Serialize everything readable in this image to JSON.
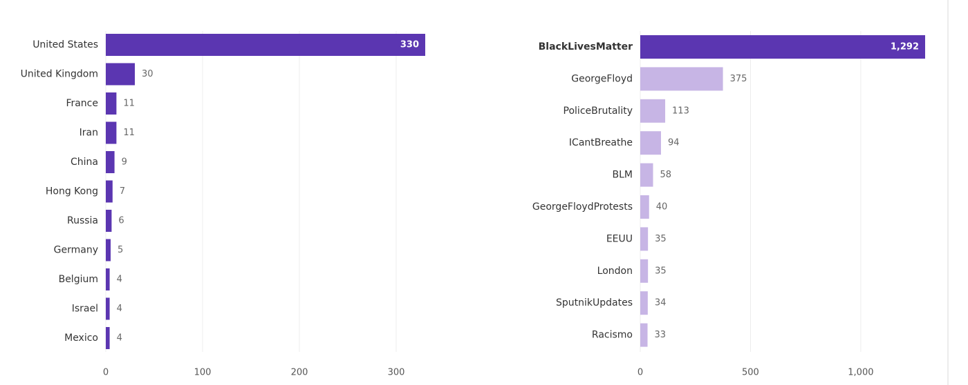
{
  "chart_data": [
    {
      "type": "barh",
      "categories": [
        "United States",
        "United Kingdom",
        "France",
        "Iran",
        "China",
        "Hong Kong",
        "Russia",
        "Germany",
        "Belgium",
        "Israel",
        "Mexico"
      ],
      "values": [
        330,
        30,
        11,
        11,
        9,
        7,
        6,
        5,
        4,
        4,
        4
      ],
      "color": "#5b36b1",
      "xlim": [
        0,
        330
      ],
      "xticks": [
        0,
        100,
        200,
        300
      ],
      "grid": true
    },
    {
      "type": "barh",
      "categories": [
        "BlackLivesMatter",
        "GeorgeFloyd",
        "PoliceBrutality",
        "ICantBreathe",
        "BLM",
        "GeorgeFloydProtests",
        "EEUU",
        "London",
        "SputnikUpdates",
        "Racismo"
      ],
      "values": [
        1292,
        375,
        113,
        94,
        58,
        40,
        35,
        35,
        34,
        33
      ],
      "value_labels": [
        "1,292",
        "375",
        "113",
        "94",
        "58",
        "40",
        "35",
        "35",
        "34",
        "33"
      ],
      "colors": [
        "#5b36b1",
        "#c7b5e5",
        "#c7b5e5",
        "#c7b5e5",
        "#c7b5e5",
        "#c7b5e5",
        "#c7b5e5",
        "#c7b5e5",
        "#c7b5e5",
        "#c7b5e5"
      ],
      "xlim": [
        0,
        1292
      ],
      "xticks": [
        0,
        500,
        {
          "value": 1000,
          "label": "1,000"
        }
      ],
      "grid": true
    }
  ]
}
